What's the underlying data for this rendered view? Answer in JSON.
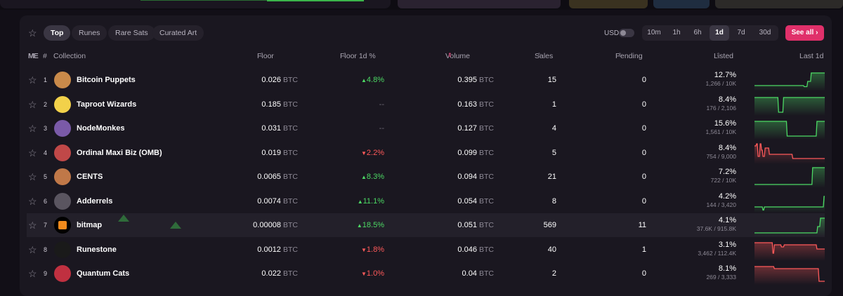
{
  "toolbar": {
    "tabs": [
      {
        "label": "Top",
        "active": true
      },
      {
        "label": "Runes",
        "active": false
      },
      {
        "label": "Rare Sats",
        "active": false
      },
      {
        "label": "Curated Art",
        "active": false
      }
    ],
    "currency_label": "USD",
    "timeframes": [
      {
        "label": "10m",
        "active": false
      },
      {
        "label": "1h",
        "active": false
      },
      {
        "label": "6h",
        "active": false
      },
      {
        "label": "1d",
        "active": true
      },
      {
        "label": "7d",
        "active": false
      },
      {
        "label": "30d",
        "active": false
      }
    ],
    "see_all": "See all",
    "accent_color": "#e0306a"
  },
  "header": {
    "rank": "#",
    "collection": "Collection",
    "floor": "Floor",
    "floor_change": "Floor 1d %",
    "volume": "Volume",
    "sales": "Sales",
    "pending": "Pending",
    "listed": "Listed",
    "last": "Last 1d"
  },
  "rows": [
    {
      "rank": "1",
      "name": "Bitcoin Puppets",
      "floor": "0.026",
      "unit": "BTC",
      "change": "4.8%",
      "dir": "up",
      "volume": "0.395",
      "sales": "15",
      "pending": "0",
      "listed_pct": "12.7%",
      "listed_count": "1,266 / 10K",
      "trend": "up",
      "spark": [
        2,
        2,
        2,
        2,
        2,
        2,
        2,
        2,
        2,
        2,
        2,
        2,
        2,
        2,
        2,
        2,
        2,
        2,
        2,
        2,
        2,
        2,
        2,
        2,
        2,
        2,
        2,
        2,
        2,
        2,
        2,
        2,
        2,
        2,
        2,
        2,
        2,
        2,
        2,
        2,
        2,
        2,
        2,
        2,
        2,
        2,
        2,
        2,
        2,
        2,
        2,
        2,
        2,
        2,
        2,
        2,
        2,
        2,
        2,
        2,
        2,
        2,
        2,
        2,
        2,
        2,
        2,
        2,
        2,
        2,
        1.5,
        1.5,
        1.5,
        1.5,
        1.5,
        4,
        4,
        4,
        4,
        4,
        8,
        8,
        8,
        8,
        8,
        8,
        8,
        8,
        8,
        8,
        8,
        8,
        8,
        8,
        8,
        8,
        8,
        8,
        8,
        8
      ]
    },
    {
      "rank": "2",
      "name": "Taproot Wizards",
      "floor": "0.185",
      "unit": "BTC",
      "change": "--",
      "dir": "flat",
      "volume": "0.163",
      "sales": "1",
      "pending": "0",
      "listed_pct": "8.4%",
      "listed_count": "176 / 2,106",
      "trend": "up",
      "spark": [
        8,
        8,
        8,
        8,
        8,
        8,
        8,
        8,
        8,
        8,
        8,
        8,
        8,
        8,
        8,
        8,
        8,
        8,
        8,
        8,
        8,
        8,
        8,
        8,
        8,
        8,
        8,
        8,
        8,
        8,
        8,
        8,
        8,
        8,
        1,
        1,
        1,
        1,
        1,
        1,
        1,
        8,
        8,
        8,
        8,
        8,
        8,
        8,
        8,
        8,
        8,
        8,
        8,
        8,
        8,
        8,
        8,
        8,
        8,
        8,
        8,
        8,
        8,
        8,
        8,
        8,
        8,
        8,
        8,
        8,
        8,
        8,
        8,
        8,
        8,
        8,
        8,
        8,
        8,
        8,
        8,
        8,
        8,
        8,
        8,
        8,
        8,
        8,
        8,
        8,
        8,
        8,
        8,
        8,
        8,
        8,
        8,
        8,
        8,
        8
      ]
    },
    {
      "rank": "3",
      "name": "NodeMonkes",
      "floor": "0.031",
      "unit": "BTC",
      "change": "--",
      "dir": "flat",
      "volume": "0.127",
      "sales": "4",
      "pending": "0",
      "listed_pct": "15.6%",
      "listed_count": "1,561 / 10K",
      "trend": "up",
      "spark": [
        8,
        8,
        8,
        8,
        8,
        8,
        8,
        8,
        8,
        8,
        8,
        8,
        8,
        8,
        8,
        8,
        8,
        8,
        8,
        8,
        8,
        8,
        8,
        8,
        8,
        8,
        8,
        8,
        8,
        8,
        8,
        8,
        8,
        8,
        8,
        8,
        8,
        8,
        8,
        8,
        8,
        8,
        8,
        8,
        8,
        8,
        1,
        1,
        1,
        1,
        1,
        1,
        1,
        1,
        1,
        1,
        1,
        1,
        1,
        1,
        1,
        1,
        1,
        1,
        1,
        1,
        1,
        1,
        1,
        1,
        1,
        1,
        1,
        1,
        1,
        1,
        1,
        1,
        1,
        1,
        1,
        1,
        1,
        1,
        1,
        1,
        1,
        1,
        8,
        8,
        8,
        8,
        8,
        8,
        8,
        8,
        8,
        8,
        8,
        8
      ]
    },
    {
      "rank": "4",
      "name": "Ordinal Maxi Biz (OMB)",
      "floor": "0.019",
      "unit": "BTC",
      "change": "2.2%",
      "dir": "down",
      "volume": "0.099",
      "sales": "5",
      "pending": "0",
      "listed_pct": "8.4%",
      "listed_count": "754 / 9,000",
      "trend": "down",
      "spark": [
        8,
        8,
        8,
        9,
        9,
        3,
        3,
        3,
        9,
        9,
        6,
        6,
        3,
        3,
        3,
        7,
        7,
        7,
        7,
        7,
        7,
        4,
        4,
        4,
        4,
        4,
        4,
        4,
        4,
        4,
        4,
        4,
        4,
        4,
        4,
        4,
        4,
        4,
        4,
        4,
        4,
        4,
        4,
        4,
        4,
        4,
        4,
        4,
        4,
        4,
        4,
        4,
        4,
        4,
        2,
        2,
        2,
        2,
        2,
        2,
        2,
        2,
        2,
        2,
        2,
        2,
        2,
        2,
        2,
        2,
        2,
        2,
        2,
        2,
        2,
        2,
        2,
        2,
        2,
        2,
        2,
        2,
        2,
        2,
        2,
        2,
        2,
        2,
        2,
        2,
        2,
        2,
        2,
        2,
        2,
        2,
        2,
        2,
        2,
        2
      ]
    },
    {
      "rank": "5",
      "name": "CENTS",
      "floor": "0.0065",
      "unit": "BTC",
      "change": "8.3%",
      "dir": "up",
      "volume": "0.094",
      "sales": "21",
      "pending": "0",
      "listed_pct": "7.2%",
      "listed_count": "722 / 10K",
      "trend": "up",
      "spark": [
        1,
        1,
        1,
        1,
        1,
        1,
        1,
        1,
        1,
        1,
        1,
        1,
        1,
        1,
        1,
        1,
        1,
        1,
        1,
        1,
        1,
        1,
        1,
        1,
        1,
        1,
        1,
        1,
        1,
        1,
        1,
        1,
        1,
        1,
        1,
        1,
        1,
        1,
        1,
        1,
        1,
        1,
        1,
        1,
        1,
        1,
        1,
        1,
        1,
        1,
        1,
        1,
        1,
        1,
        1,
        1,
        1,
        1,
        1,
        1,
        1,
        1,
        1,
        1,
        1,
        1,
        1,
        1,
        1,
        1,
        1,
        1,
        1,
        1,
        1,
        1,
        1,
        1,
        1,
        1,
        1,
        1,
        9,
        9,
        9,
        9,
        9,
        9,
        9,
        9,
        9,
        9,
        9,
        9,
        9,
        9,
        9,
        9,
        9,
        9
      ]
    },
    {
      "rank": "6",
      "name": "Adderrels",
      "floor": "0.0074",
      "unit": "BTC",
      "change": "11.1%",
      "dir": "up",
      "volume": "0.054",
      "sales": "8",
      "pending": "0",
      "listed_pct": "4.2%",
      "listed_count": "144 / 3,420",
      "trend": "up",
      "spark": [
        2,
        2,
        2,
        2,
        2,
        2,
        2,
        2,
        2,
        2,
        2,
        2,
        0.5,
        0.5,
        2,
        2,
        2,
        2,
        2,
        2,
        2,
        2,
        2,
        2,
        2,
        2,
        2,
        2,
        2,
        2,
        2,
        2,
        2,
        2,
        2,
        2,
        2,
        2,
        2,
        2,
        2,
        2,
        2,
        2,
        2,
        2,
        2,
        2,
        2,
        2,
        2,
        2,
        2,
        2,
        2,
        2,
        2,
        2,
        2,
        2,
        2,
        2,
        2,
        2,
        2,
        2,
        2,
        2,
        2,
        2,
        2,
        2,
        2,
        2,
        2,
        2,
        2,
        2,
        2,
        2,
        2,
        2,
        2,
        2,
        2,
        2,
        2,
        2,
        2,
        2,
        2,
        2,
        2,
        2,
        2,
        2,
        2,
        2,
        7,
        7
      ]
    },
    {
      "rank": "7",
      "name": "bitmap",
      "floor": "0.00008",
      "unit": "BTC",
      "change": "18.5%",
      "dir": "up",
      "volume": "0.051",
      "sales": "569",
      "pending": "11",
      "listed_pct": "4.1%",
      "listed_count": "37.6K / 915.8K",
      "trend": "up",
      "highlight": true,
      "spark": [
        1,
        1,
        1,
        1,
        1,
        1,
        1,
        1,
        1,
        1,
        1,
        1,
        1,
        1,
        1,
        1,
        1,
        1,
        1,
        1,
        1,
        1,
        1,
        1,
        1,
        1,
        1,
        1,
        1,
        1,
        1,
        1,
        1,
        1,
        1,
        1,
        1,
        1,
        1,
        1,
        1,
        1,
        1,
        1,
        1,
        1,
        1,
        1,
        1,
        1,
        1,
        1,
        1,
        1,
        1,
        1,
        1,
        1,
        1,
        1,
        1,
        1,
        1,
        1,
        1,
        1,
        1,
        1,
        1,
        1,
        1,
        1,
        1,
        1,
        1,
        1,
        1,
        1,
        1,
        1,
        1,
        1,
        1,
        1,
        1,
        1,
        1,
        1,
        1,
        4,
        4,
        4,
        4,
        8,
        8,
        8,
        8,
        8,
        8,
        8
      ]
    },
    {
      "rank": "8",
      "name": "Runestone",
      "floor": "0.0012",
      "unit": "BTC",
      "change": "1.8%",
      "dir": "down",
      "volume": "0.046",
      "sales": "40",
      "pending": "1",
      "listed_pct": "3.1%",
      "listed_count": "3,462 / 112.4K",
      "trend": "down",
      "spark": [
        8,
        8,
        8,
        8,
        8,
        8,
        8,
        8,
        8,
        8,
        8,
        8,
        8,
        8,
        8,
        8,
        8,
        8,
        8,
        8,
        8,
        8,
        8,
        8,
        8,
        8,
        3,
        3,
        7,
        7,
        7,
        7,
        7,
        7,
        7,
        7,
        7,
        7,
        6,
        6,
        6,
        6,
        7,
        7,
        7,
        7,
        7,
        7,
        7,
        7,
        7,
        7,
        7,
        7,
        7,
        7,
        7,
        7,
        7,
        7,
        7,
        7,
        7,
        7,
        7,
        7,
        7,
        7,
        7,
        7,
        7,
        7,
        7,
        7,
        7,
        7,
        7,
        7,
        7,
        7,
        7,
        7,
        7,
        7,
        7,
        7,
        7,
        7,
        5,
        5,
        5,
        5,
        5,
        5,
        5,
        5,
        5,
        5,
        5,
        5
      ]
    },
    {
      "rank": "9",
      "name": "Quantum Cats",
      "floor": "0.022",
      "unit": "BTC",
      "change": "1.0%",
      "dir": "down",
      "volume": "0.04",
      "sales": "2",
      "pending": "0",
      "listed_pct": "8.1%",
      "listed_count": "269 / 3,333",
      "trend": "down",
      "spark": [
        8,
        8,
        8,
        8,
        8,
        8,
        8,
        8,
        8,
        8,
        8,
        8,
        8,
        8,
        8,
        8,
        8,
        8,
        8,
        8,
        8,
        8,
        8,
        8,
        8,
        8,
        8,
        8,
        7,
        7,
        7,
        7,
        7,
        7,
        7,
        7,
        7,
        7,
        7,
        7,
        7,
        7,
        7,
        7,
        7,
        7,
        7,
        7,
        7,
        7,
        7,
        7,
        7,
        7,
        7,
        7,
        7,
        7,
        7,
        7,
        7,
        7,
        7,
        7,
        7,
        7,
        7,
        7,
        7,
        7,
        7,
        7,
        7,
        7,
        7,
        7,
        7,
        7,
        7,
        7,
        7,
        7,
        7,
        7,
        7,
        7,
        7,
        7,
        7,
        7,
        7,
        1,
        1,
        1,
        1,
        1,
        1,
        1,
        1,
        1
      ]
    }
  ],
  "colors": {
    "up": "#4cd964",
    "down": "#ff5a5a",
    "bg": "#1a1720"
  }
}
